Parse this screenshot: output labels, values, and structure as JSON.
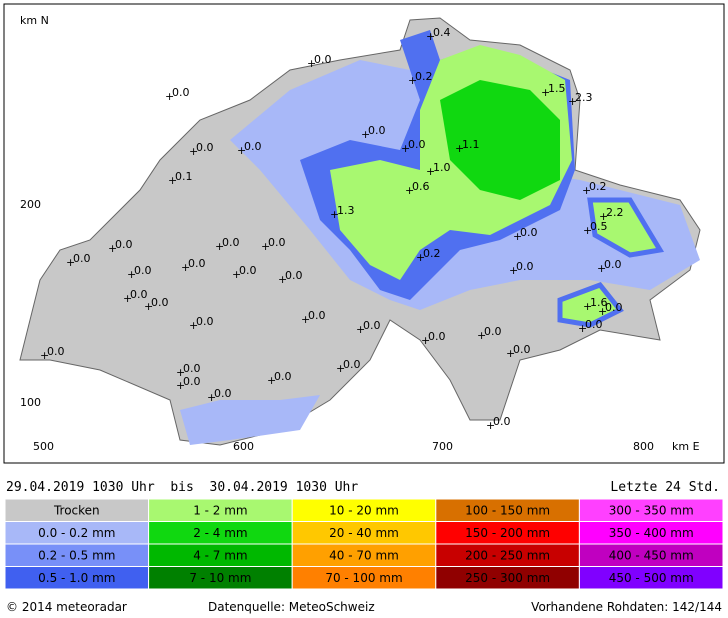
{
  "map": {
    "axis": {
      "north_unit": "km N",
      "east_unit": "km E",
      "y_labels": [
        "200",
        "100"
      ],
      "x_labels": [
        "500",
        "600",
        "700",
        "800"
      ]
    },
    "stations": [
      {
        "label": "0.4"
      },
      {
        "label": "0.0"
      },
      {
        "label": "0.2"
      },
      {
        "label": "1.5"
      },
      {
        "label": "2.3"
      },
      {
        "label": "0.0"
      },
      {
        "label": "0.0"
      },
      {
        "label": "0.0"
      },
      {
        "label": "0.0"
      },
      {
        "label": "1.1"
      },
      {
        "label": "0.0"
      },
      {
        "label": "1.0"
      },
      {
        "label": "0.1"
      },
      {
        "label": "0.6"
      },
      {
        "label": "0.2"
      },
      {
        "label": "1.3"
      },
      {
        "label": "2.2"
      },
      {
        "label": "0.5"
      },
      {
        "label": "0.0"
      },
      {
        "label": "0.0"
      },
      {
        "label": "0.0"
      },
      {
        "label": "0.0"
      },
      {
        "label": "0.0"
      },
      {
        "label": "0.2"
      },
      {
        "label": "0.0"
      },
      {
        "label": "0.0"
      },
      {
        "label": "0.0"
      },
      {
        "label": "0.0"
      },
      {
        "label": "0.0"
      },
      {
        "label": "0.0"
      },
      {
        "label": "0.0"
      },
      {
        "label": "0.0"
      },
      {
        "label": "1.6"
      },
      {
        "label": "0.0"
      },
      {
        "label": "0.0"
      },
      {
        "label": "0.0"
      },
      {
        "label": "0.0"
      },
      {
        "label": "0.0"
      },
      {
        "label": "0.0"
      },
      {
        "label": "0.0"
      },
      {
        "label": "0.0"
      },
      {
        "label": "0.0"
      },
      {
        "label": "0.0"
      },
      {
        "label": "0.0"
      },
      {
        "label": "0.0"
      },
      {
        "label": "0.0"
      },
      {
        "label": "0.0"
      },
      {
        "label": "0.0"
      }
    ]
  },
  "header": {
    "period": "29.04.2019 1030 Uhr  bis  30.04.2019 1030 Uhr",
    "span": "Letzte 24 Std."
  },
  "legend": {
    "rows": [
      [
        "Trocken",
        "1 - 2 mm",
        "10 - 20 mm",
        "100 - 150 mm",
        "300 - 350 mm"
      ],
      [
        "0.0 - 0.2 mm",
        "2 - 4 mm",
        "20 - 40 mm",
        "150 - 200 mm",
        "350 - 400 mm"
      ],
      [
        "0.2 - 0.5 mm",
        "4 - 7 mm",
        "40 - 70 mm",
        "200 - 250 mm",
        "400 - 450 mm"
      ],
      [
        "0.5 - 1.0 mm",
        "7 - 10 mm",
        "70 - 100 mm",
        "250 - 300 mm",
        "450 - 500 mm"
      ]
    ]
  },
  "footer": {
    "copyright": "© 2014 meteoradar",
    "source": "Datenquelle: MeteoSchweiz",
    "raw": "Vorhandene Rohdaten: 142/144"
  }
}
